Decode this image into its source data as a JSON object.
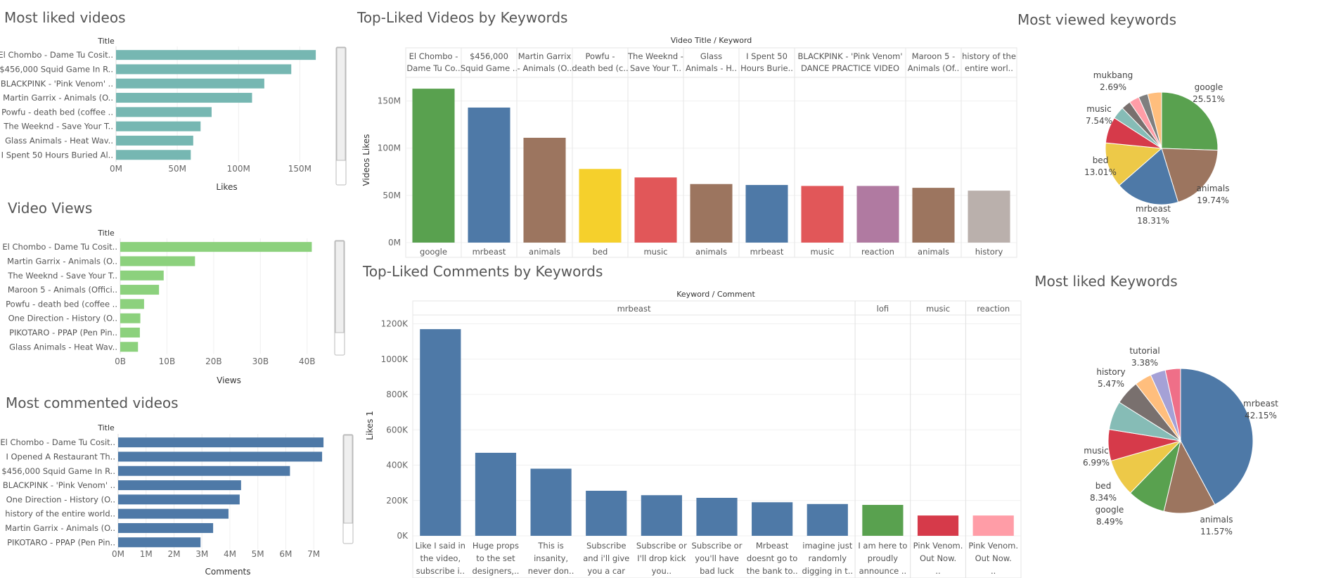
{
  "chart_data": [
    {
      "id": "most-liked-videos",
      "type": "bar",
      "orientation": "horizontal",
      "title": "Most liked videos",
      "header": "Title",
      "xlabel": "Likes",
      "color": "#76b7b2",
      "categories": [
        "El Chombo - Dame Tu Cosit..",
        "$456,000 Squid Game In R..",
        "BLACKPINK - 'Pink Venom' ..",
        "Martin Garrix - Animals (O..",
        "Powfu - death bed (coffee ..",
        "The Weeknd - Save Your T..",
        "Glass Animals - Heat Wav..",
        "I Spent 50 Hours Buried Al.."
      ],
      "values": [
        163,
        143,
        121,
        111,
        78,
        69,
        63,
        61
      ],
      "ticks": [
        0,
        50,
        100,
        150
      ],
      "tick_labels": [
        "0M",
        "50M",
        "100M",
        "150M"
      ],
      "xlim": [
        0,
        175
      ]
    },
    {
      "id": "video-views",
      "type": "bar",
      "orientation": "horizontal",
      "title": "Video Views",
      "header": "Title",
      "xlabel": "Views",
      "color": "#8cd17d",
      "categories": [
        "El Chombo - Dame Tu Cosit..",
        "Martin Garrix - Animals (O..",
        "The Weeknd - Save Your T..",
        "Maroon 5 - Animals (Offici..",
        "Powfu - death bed (coffee ..",
        "One Direction - History (O..",
        "PIKOTARO - PPAP (Pen Pin..",
        "Glass Animals - Heat Wav.."
      ],
      "values": [
        41,
        16,
        9.3,
        8.3,
        5.1,
        4.3,
        4.2,
        3.8
      ],
      "ticks": [
        0,
        10,
        20,
        30,
        40
      ],
      "tick_labels": [
        "0B",
        "10B",
        "20B",
        "30B",
        "40B"
      ],
      "xlim": [
        0,
        45
      ]
    },
    {
      "id": "most-commented-videos",
      "type": "bar",
      "orientation": "horizontal",
      "title": "Most commented videos",
      "header": "Title",
      "xlabel": "Comments",
      "color": "#4e79a7",
      "categories": [
        "El Chombo - Dame Tu Cosit..",
        "I Opened A Restaurant Th..",
        "$456,000 Squid Game In R..",
        "BLACKPINK - 'Pink Venom' ..",
        "One Direction - History (O..",
        "history of the entire world..",
        "Martin Garrix - Animals (O..",
        "PIKOTARO - PPAP (Pen Pin.."
      ],
      "values": [
        7.35,
        7.3,
        6.15,
        4.4,
        4.35,
        3.95,
        3.4,
        2.95
      ],
      "ticks": [
        0,
        1,
        2,
        3,
        4,
        5,
        6,
        7
      ],
      "tick_labels": [
        "0M",
        "1M",
        "2M",
        "3M",
        "4M",
        "5M",
        "6M",
        "7M"
      ],
      "xlim": [
        0,
        7.6
      ]
    },
    {
      "id": "top-liked-videos-by-keywords",
      "type": "bar",
      "title": "Top-Liked Videos by Keywords",
      "header": "Video Title  /  Keyword",
      "ylabel": "Videos Likes",
      "top_labels": [
        [
          "El Chombo -",
          "Dame Tu Co.."
        ],
        [
          "$456,000",
          "Squid Game .."
        ],
        [
          "Martin Garrix",
          "- Animals (O.."
        ],
        [
          "Powfu -",
          "death bed (c.."
        ],
        [
          "The Weeknd -",
          "Save Your T.."
        ],
        [
          "Glass",
          "Animals - H.."
        ],
        [
          "I Spent 50",
          "Hours Burie.."
        ],
        [
          "BLACKPINK - 'Pink Venom'",
          "DANCE PRACTICE VIDEO"
        ],
        [
          "Maroon 5 -",
          "Animals (Of.."
        ],
        [
          "history of the",
          "entire worl.."
        ]
      ],
      "top_spans": [
        1,
        1,
        1,
        1,
        1,
        1,
        1,
        2,
        1,
        1
      ],
      "categories": [
        "google",
        "mrbeast",
        "animals",
        "bed",
        "music",
        "animals",
        "mrbeast",
        "music",
        "reaction",
        "animals",
        "history"
      ],
      "values": [
        163,
        143,
        111,
        78,
        69,
        62,
        61,
        60,
        60,
        58,
        55
      ],
      "colors": [
        "#59a14f",
        "#4e79a7",
        "#9c755f",
        "#f5d02c",
        "#e15759",
        "#9c755f",
        "#4e79a7",
        "#e15759",
        "#b07aa1",
        "#9c755f",
        "#bab0ac"
      ],
      "ticks": [
        0,
        50,
        100,
        150
      ],
      "tick_labels": [
        "0M",
        "50M",
        "100M",
        "150M"
      ],
      "ylim": [
        0,
        175
      ]
    },
    {
      "id": "top-liked-comments-by-keywords",
      "type": "bar",
      "title": "Top-Liked Comments by Keywords",
      "header": "Keyword  /  Comment",
      "ylabel": "Likes 1",
      "groups": [
        {
          "name": "mrbeast",
          "count": 8
        },
        {
          "name": "lofi",
          "count": 1
        },
        {
          "name": "music",
          "count": 1
        },
        {
          "name": "reaction",
          "count": 1
        }
      ],
      "categories": [
        [
          "Like I said in",
          "the video,",
          "subscribe i.."
        ],
        [
          "Huge props",
          "to the set",
          "designers,.."
        ],
        [
          "This is",
          "insanity,",
          "never don.."
        ],
        [
          "Subscribe",
          "and i'll give",
          "you a car"
        ],
        [
          "Subscribe or",
          "I'll drop kick",
          "you.."
        ],
        [
          "Subscribe or",
          "you'll have",
          "bad luck"
        ],
        [
          "Mrbeast",
          "doesnt go to",
          "the bank to.."
        ],
        [
          "imagine just",
          "randomly",
          "digging in t.."
        ],
        [
          "I am here to",
          "proudly",
          "announce .."
        ],
        [
          "Pink Venom.",
          "Out Now.",
          ".."
        ],
        [
          "Pink Venom.",
          "Out Now.",
          ".."
        ]
      ],
      "values": [
        1170,
        470,
        380,
        255,
        230,
        215,
        190,
        180,
        175,
        115,
        115
      ],
      "colors": [
        "#4e79a7",
        "#4e79a7",
        "#4e79a7",
        "#4e79a7",
        "#4e79a7",
        "#4e79a7",
        "#4e79a7",
        "#4e79a7",
        "#59a14f",
        "#d63a4a",
        "#ff9da7"
      ],
      "ticks": [
        0,
        200,
        400,
        600,
        800,
        1000,
        1200
      ],
      "tick_labels": [
        "0K",
        "200K",
        "400K",
        "600K",
        "800K",
        "1000K",
        "1200K"
      ],
      "ylim": [
        0,
        1250
      ]
    },
    {
      "id": "most-viewed-keywords",
      "type": "pie",
      "title": "Most viewed keywords",
      "slices": [
        {
          "name": "google",
          "value": 25.51,
          "label": [
            "google",
            "25.51%"
          ],
          "color": "#59a14f"
        },
        {
          "name": "animals",
          "value": 19.74,
          "label": [
            "animals",
            "19.74%"
          ],
          "color": "#9c755f"
        },
        {
          "name": "mrbeast",
          "value": 18.31,
          "label": [
            "mrbeast",
            "18.31%"
          ],
          "color": "#4e79a7"
        },
        {
          "name": "bed",
          "value": 13.01,
          "label": [
            "bed",
            "13.01%"
          ],
          "color": "#edc948"
        },
        {
          "name": "music",
          "value": 7.54,
          "label": [
            "music",
            "7.54%"
          ],
          "color": "#d63a4a"
        },
        {
          "name": "",
          "value": 3.6,
          "label": [],
          "color": "#86bcb6"
        },
        {
          "name": "mukbang",
          "value": 2.69,
          "label": [
            "mukbang",
            "2.69%"
          ],
          "color": "#79706e"
        },
        {
          "name": "",
          "value": 2.9,
          "label": [],
          "color": "#ff9da7"
        },
        {
          "name": "",
          "value": 2.7,
          "label": [],
          "color": "#7f7f7f"
        },
        {
          "name": "",
          "value": 4.0,
          "label": [],
          "color": "#ffbe7d"
        }
      ]
    },
    {
      "id": "most-liked-keywords",
      "type": "pie",
      "title": "Most liked Keywords",
      "slices": [
        {
          "name": "mrbeast",
          "value": 42.15,
          "label": [
            "mrbeast",
            "42.15%"
          ],
          "color": "#4e79a7"
        },
        {
          "name": "animals",
          "value": 11.57,
          "label": [
            "animals",
            "11.57%"
          ],
          "color": "#9c755f"
        },
        {
          "name": "google",
          "value": 8.49,
          "label": [
            "google",
            "8.49%"
          ],
          "color": "#59a14f"
        },
        {
          "name": "bed",
          "value": 8.34,
          "label": [
            "bed",
            "8.34%"
          ],
          "color": "#edc948"
        },
        {
          "name": "music",
          "value": 6.99,
          "label": [
            "music",
            "6.99%"
          ],
          "color": "#d63a4a"
        },
        {
          "name": "",
          "value": 6.4,
          "label": [],
          "color": "#86bcb6"
        },
        {
          "name": "history",
          "value": 5.47,
          "label": [
            "history",
            "5.47%"
          ],
          "color": "#79706e"
        },
        {
          "name": "",
          "value": 3.8,
          "label": [],
          "color": "#ffbe7d"
        },
        {
          "name": "tutorial",
          "value": 3.38,
          "label": [
            "tutorial",
            "3.38%"
          ],
          "color": "#a5a1d6"
        },
        {
          "name": "",
          "value": 3.41,
          "label": [],
          "color": "#ef6f88"
        }
      ]
    }
  ]
}
